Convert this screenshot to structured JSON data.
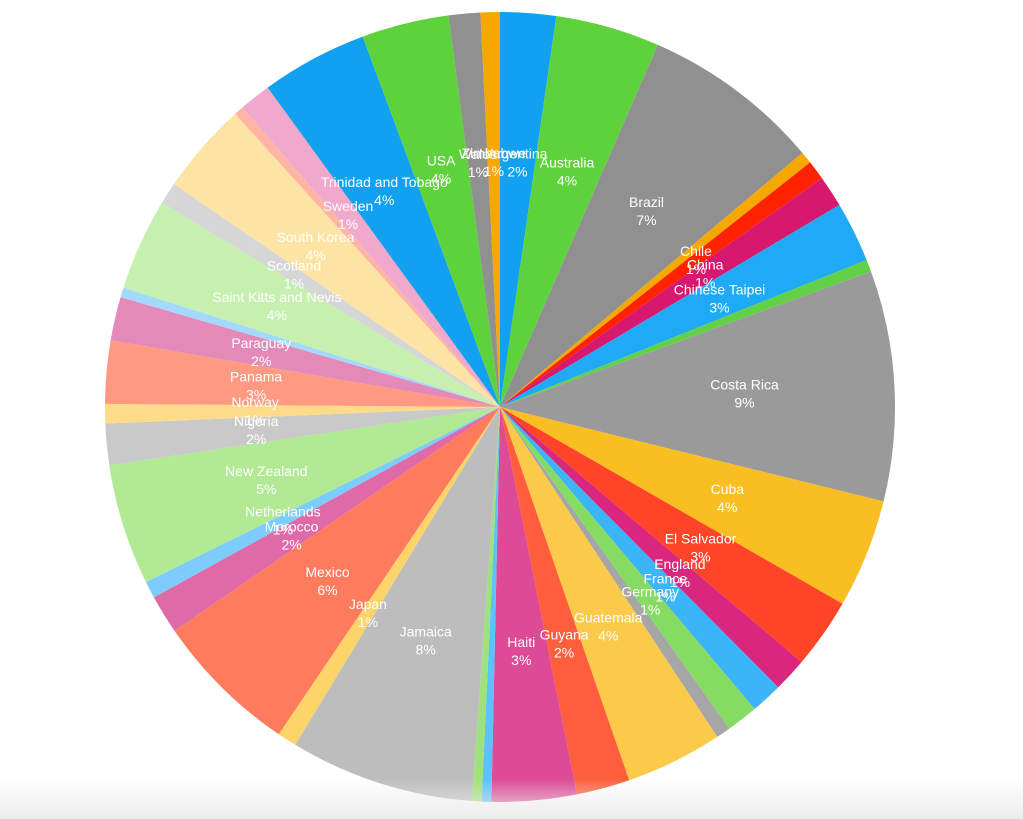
{
  "chart_data": {
    "type": "pie",
    "title": "",
    "start_angle_deg": 0,
    "direction": "clockwise",
    "slices": [
      {
        "label": "Argentina",
        "pct": "2%",
        "value": 2.3,
        "color": "#12a1f0"
      },
      {
        "label": "Australia",
        "pct": "4%",
        "value": 4.3,
        "color": "#5dd23c"
      },
      {
        "label": "Brazil",
        "pct": "7%",
        "value": 7.4,
        "color": "#909090"
      },
      {
        "label": "",
        "pct": "",
        "value": 0.5,
        "color": "#f5a800"
      },
      {
        "label": "Chile",
        "pct": "1%",
        "value": 0.8,
        "color": "#ff2200"
      },
      {
        "label": "China",
        "pct": "1%",
        "value": 1.3,
        "color": "#d6186f"
      },
      {
        "label": "Chinese Taipei",
        "pct": "3%",
        "value": 2.5,
        "color": "#20aaf5"
      },
      {
        "label": "",
        "pct": "",
        "value": 0.5,
        "color": "#62d148"
      },
      {
        "label": "Costa Rica",
        "pct": "9%",
        "value": 9.5,
        "color": "#9a9a9a"
      },
      {
        "label": "Cuba",
        "pct": "4%",
        "value": 4.5,
        "color": "#f9be22"
      },
      {
        "label": "El Salvador",
        "pct": "3%",
        "value": 2.9,
        "color": "#ff4428"
      },
      {
        "label": "England",
        "pct": "1%",
        "value": 1.4,
        "color": "#d9277f"
      },
      {
        "label": "France",
        "pct": "1%",
        "value": 1.3,
        "color": "#3cb4f8"
      },
      {
        "label": "Germany",
        "pct": "1%",
        "value": 1.3,
        "color": "#86dc62"
      },
      {
        "label": "",
        "pct": "",
        "value": 0.6,
        "color": "#a6a6a6"
      },
      {
        "label": "Guatemala",
        "pct": "4%",
        "value": 4.0,
        "color": "#fbca4b"
      },
      {
        "label": "Guyana",
        "pct": "2%",
        "value": 2.2,
        "color": "#ff5e3c"
      },
      {
        "label": "Haiti",
        "pct": "3%",
        "value": 3.5,
        "color": "#dd4a96"
      },
      {
        "label": "",
        "pct": "",
        "value": 0.4,
        "color": "#5cc2fa"
      },
      {
        "label": "",
        "pct": "",
        "value": 0.4,
        "color": "#9fe17a"
      },
      {
        "label": "Jamaica",
        "pct": "8%",
        "value": 7.6,
        "color": "#bdbdbd"
      },
      {
        "label": "Japan",
        "pct": "1%",
        "value": 0.8,
        "color": "#fcd46a"
      },
      {
        "label": "Mexico",
        "pct": "6%",
        "value": 6.0,
        "color": "#ff7b5e"
      },
      {
        "label": "Morocco",
        "pct": "2%",
        "value": 1.6,
        "color": "#e06aa8"
      },
      {
        "label": "Netherlands",
        "pct": "1%",
        "value": 0.7,
        "color": "#7ccdfb"
      },
      {
        "label": "New Zealand",
        "pct": "5%",
        "value": 5.0,
        "color": "#b2e995"
      },
      {
        "label": "Nigeria",
        "pct": "2%",
        "value": 1.7,
        "color": "#c9c9c9"
      },
      {
        "label": "Norway",
        "pct": "1%",
        "value": 0.8,
        "color": "#fddb88"
      },
      {
        "label": "Panama",
        "pct": "3%",
        "value": 2.6,
        "color": "#ff9982"
      },
      {
        "label": "Paraguay",
        "pct": "2%",
        "value": 1.8,
        "color": "#e48ab8"
      },
      {
        "label": "",
        "pct": "",
        "value": 0.4,
        "color": "#a3dafc"
      },
      {
        "label": "Saint Kitts and Nevis",
        "pct": "4%",
        "value": 3.8,
        "color": "#c7f0b0"
      },
      {
        "label": "Scotland",
        "pct": "1%",
        "value": 0.9,
        "color": "#d6d6d6"
      },
      {
        "label": "South Korea",
        "pct": "4%",
        "value": 3.8,
        "color": "#fde3a4"
      },
      {
        "label": "",
        "pct": "",
        "value": 0.4,
        "color": "#ffb4a4"
      },
      {
        "label": "Sweden",
        "pct": "1%",
        "value": 1.3,
        "color": "#f0a8cc"
      },
      {
        "label": "Trinidad and Tobago",
        "pct": "4%",
        "value": 4.4,
        "color": "#12a1f0"
      },
      {
        "label": "USA",
        "pct": "4%",
        "value": 3.6,
        "color": "#5dd23c"
      },
      {
        "label": "Wales",
        "pct": "1%",
        "value": 1.3,
        "color": "#909090"
      },
      {
        "label": "Zimbabwe",
        "pct": "1%",
        "value": 0.8,
        "color": "#f5a800"
      }
    ]
  }
}
